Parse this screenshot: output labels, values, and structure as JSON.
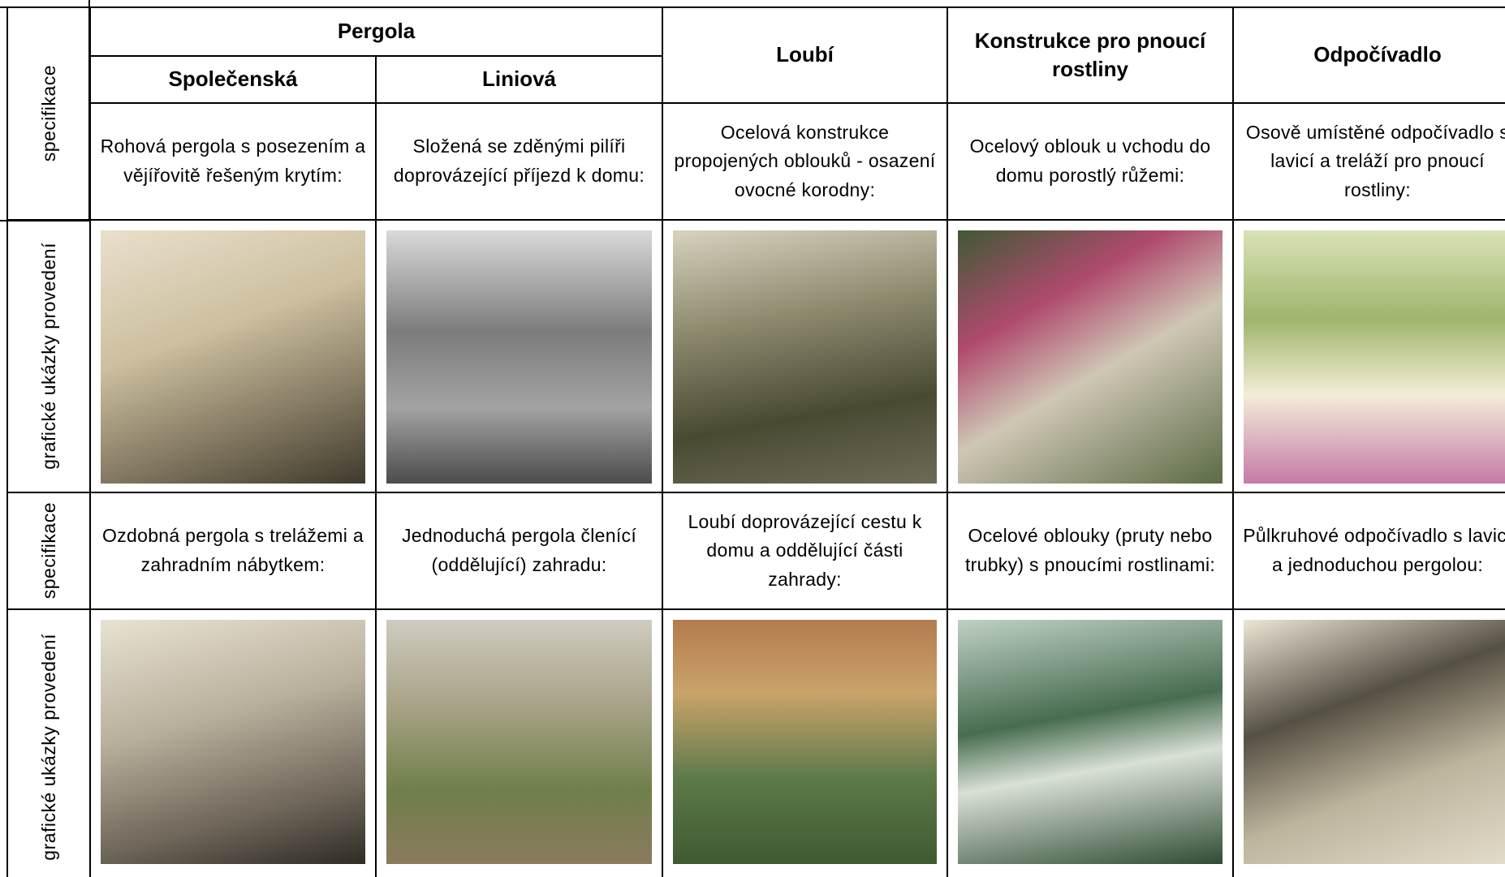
{
  "table": {
    "header": {
      "group": "Pergola",
      "columns": [
        "Společenská",
        "Liniová",
        "Loubí",
        "Konstrukce pro pnoucí rostliny",
        "Odpočívadlo"
      ]
    },
    "rows": [
      {
        "label": "specifikace",
        "cells": [
          "Rohová pergola s posezením a vějířovitě řešeným krytím:",
          "Složená se zděnými pilíři doprovázející příjezd k domu:",
          "Ocelová konstrukce propojených oblouků - osazení ovocné korodny:",
          "Ocelový oblouk u vchodu do domu porostlý růžemi:",
          "Osově umístěné odpočívadlo s lavicí a treláží pro pnoucí rostliny:"
        ]
      },
      {
        "label": "grafické ukázky provedení"
      },
      {
        "label": "specifikace",
        "cells": [
          "Ozdobná pergola s trelážemi a zahradním nábytkem:",
          "Jednoduchá pergola členící (oddělující) zahradu:",
          "Loubí doprovázející cestu k domu a oddělující části zahrady:",
          "Ocelové oblouky (pruty nebo trubky) s pnoucími rostlinami:",
          "Půlkruhové odpočívadlo s lavicí a jednoduchou pergolou:"
        ]
      },
      {
        "label": "grafické ukázky provedení"
      }
    ]
  }
}
